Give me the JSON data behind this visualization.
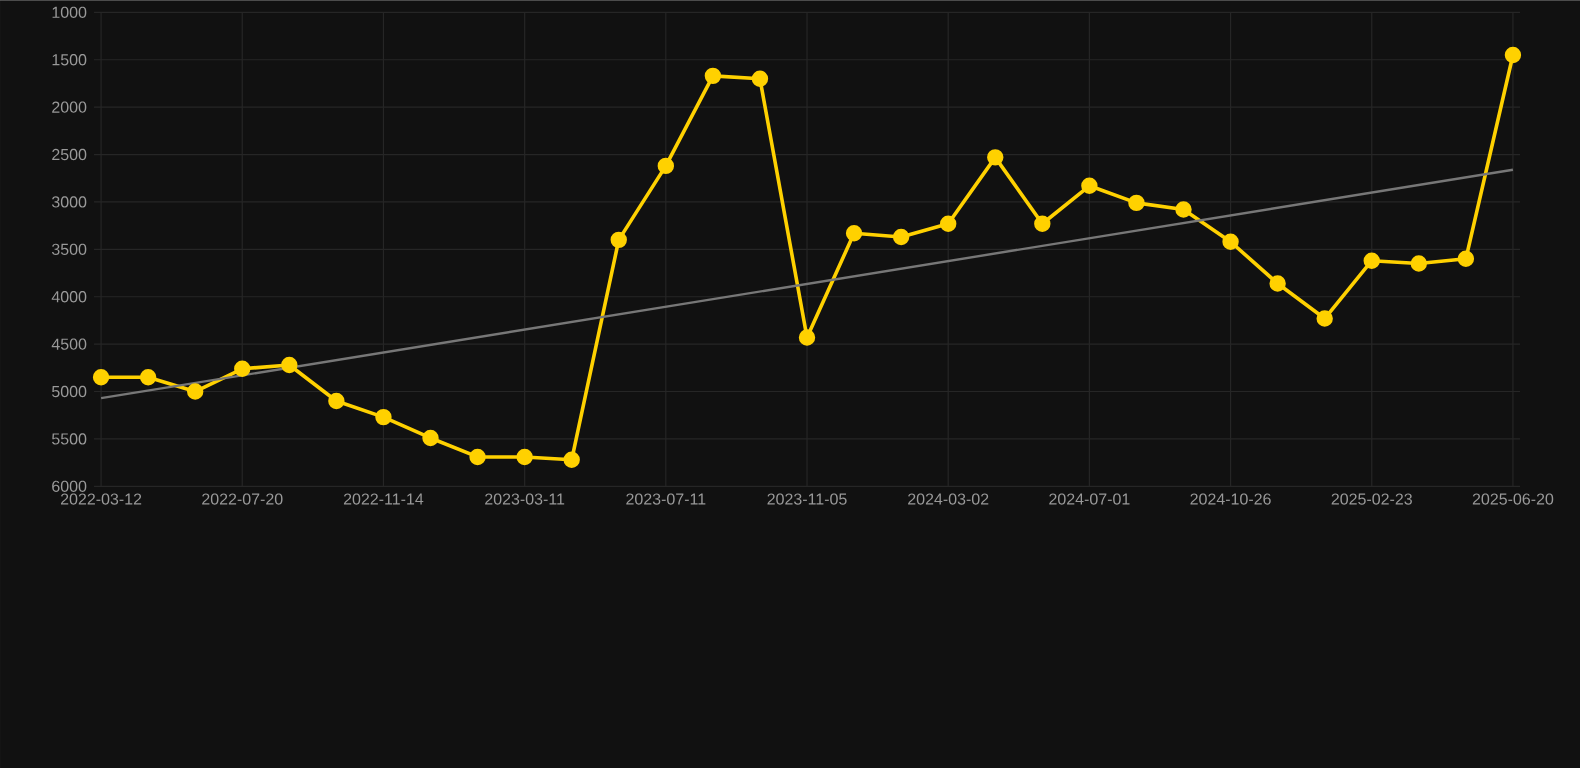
{
  "chart_data": {
    "type": "line",
    "categories": [
      "2022-03-12",
      null,
      null,
      "2022-07-20",
      null,
      null,
      "2022-11-14",
      null,
      null,
      "2023-03-11",
      null,
      null,
      "2023-07-11",
      null,
      null,
      "2023-11-05",
      null,
      null,
      "2024-03-02",
      null,
      null,
      "2024-07-01",
      null,
      null,
      "2024-10-26",
      null,
      null,
      "2025-02-23",
      null,
      null,
      "2025-06-20"
    ],
    "ylim": [
      6000,
      1000
    ],
    "yticks": [
      1000,
      1500,
      2000,
      2500,
      3000,
      3500,
      4000,
      4500,
      5000,
      5500,
      6000
    ],
    "grid": true,
    "series": [
      {
        "color": "#ffd100",
        "marker": "circle",
        "values": [
          4850,
          4850,
          5000,
          4760,
          4720,
          5100,
          5270,
          5490,
          5690,
          5690,
          5720,
          3400,
          2620,
          1670,
          1700,
          4430,
          3330,
          3370,
          3230,
          2530,
          3230,
          2830,
          3010,
          3080,
          3420,
          3860,
          4230,
          3620,
          3650,
          3600,
          1450
        ]
      },
      {
        "color": "#777777",
        "marker": "none",
        "values": [
          5070,
          null,
          null,
          null,
          null,
          null,
          null,
          null,
          null,
          null,
          null,
          null,
          null,
          null,
          null,
          null,
          null,
          null,
          null,
          null,
          null,
          null,
          null,
          null,
          null,
          null,
          null,
          null,
          null,
          null,
          2660
        ]
      }
    ]
  }
}
